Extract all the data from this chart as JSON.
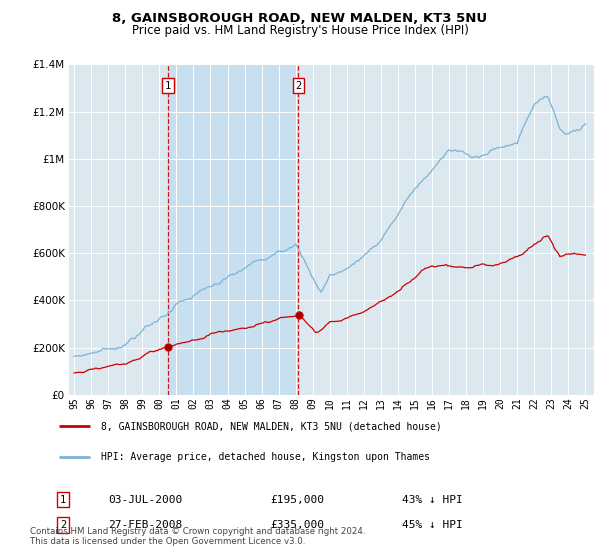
{
  "title": "8, GAINSBOROUGH ROAD, NEW MALDEN, KT3 5NU",
  "subtitle": "Price paid vs. HM Land Registry's House Price Index (HPI)",
  "legend_line1": "8, GAINSBOROUGH ROAD, NEW MALDEN, KT3 5NU (detached house)",
  "legend_line2": "HPI: Average price, detached house, Kingston upon Thames",
  "footnote": "Contains HM Land Registry data © Crown copyright and database right 2024.\nThis data is licensed under the Open Government Licence v3.0.",
  "transactions": [
    {
      "label": "1",
      "date": "03-JUL-2000",
      "price": 195000,
      "pct": "43% ↓ HPI",
      "x": 2000.5
    },
    {
      "label": "2",
      "date": "27-FEB-2008",
      "price": 335000,
      "pct": "45% ↓ HPI",
      "x": 2008.15
    }
  ],
  "hpi_color": "#7ab3d4",
  "hpi_fill_color": "#c8dff0",
  "price_color": "#cc0000",
  "vline_color": "#cc0000",
  "background_color": "#dce8f0",
  "ylim": [
    0,
    1400000
  ],
  "xlim_start": 1994.7,
  "xlim_end": 2025.5,
  "yticks": [
    0,
    200000,
    400000,
    600000,
    800000,
    1000000,
    1200000,
    1400000
  ]
}
